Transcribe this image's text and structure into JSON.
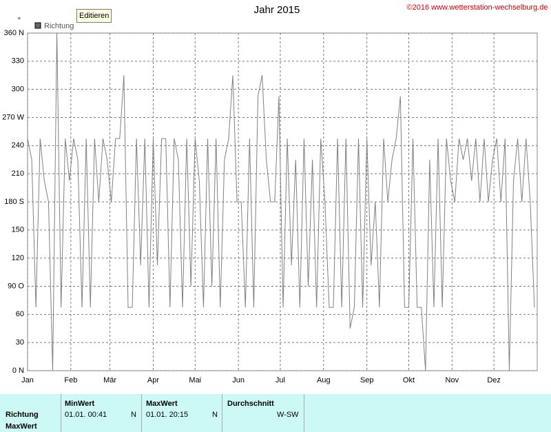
{
  "chart_data": {
    "type": "line",
    "title": "Jahr 2015",
    "y_label": "°",
    "legend": "top-left",
    "grid": true,
    "xlim": [
      0,
      365
    ],
    "ylim": [
      0,
      360
    ],
    "xticks": [
      {
        "value": 0,
        "label": "Jan"
      },
      {
        "value": 31,
        "label": "Feb"
      },
      {
        "value": 59,
        "label": "Mär"
      },
      {
        "value": 90,
        "label": "Apr"
      },
      {
        "value": 120,
        "label": "Mai"
      },
      {
        "value": 151,
        "label": "Jun"
      },
      {
        "value": 181,
        "label": "Jul"
      },
      {
        "value": 212,
        "label": "Aug"
      },
      {
        "value": 243,
        "label": "Sep"
      },
      {
        "value": 273,
        "label": "Okt"
      },
      {
        "value": 304,
        "label": "Nov"
      },
      {
        "value": 334,
        "label": "Dez"
      }
    ],
    "yticks": [
      {
        "value": 360,
        "label": "360 N"
      },
      330,
      300,
      {
        "value": 270,
        "label": "270 W"
      },
      240,
      210,
      {
        "value": 180,
        "label": "180 S"
      },
      150,
      120,
      {
        "value": 90,
        "label": "90  O"
      },
      60,
      30,
      {
        "value": 0,
        "label": "0  N"
      }
    ],
    "x": [
      0,
      3,
      6,
      9,
      12,
      15,
      18,
      21,
      24,
      27,
      30,
      33,
      36,
      39,
      42,
      45,
      48,
      51,
      54,
      57,
      60,
      63,
      66,
      69,
      72,
      75,
      78,
      81,
      84,
      87,
      90,
      93,
      96,
      99,
      102,
      105,
      108,
      111,
      114,
      117,
      120,
      123,
      126,
      129,
      132,
      135,
      138,
      141,
      144,
      147,
      150,
      153,
      156,
      159,
      162,
      165,
      168,
      171,
      174,
      177,
      180,
      183,
      186,
      189,
      192,
      195,
      198,
      201,
      204,
      207,
      210,
      213,
      216,
      219,
      222,
      225,
      228,
      231,
      234,
      237,
      240,
      243,
      246,
      249,
      252,
      255,
      258,
      261,
      264,
      267,
      270,
      273,
      276,
      279,
      282,
      285,
      288,
      291,
      294,
      297,
      300,
      303,
      306,
      309,
      312,
      315,
      318,
      321,
      324,
      327,
      330,
      333,
      336,
      339,
      342,
      345,
      348,
      351,
      354,
      357,
      360,
      363
    ],
    "series": [
      {
        "name": "Richtung",
        "color": "#808080",
        "values": [
          247.5,
          225,
          67.5,
          247.5,
          202.5,
          180,
          0,
          360,
          67.5,
          247.5,
          202.5,
          247.5,
          225,
          67.5,
          247.5,
          67.5,
          247.5,
          180,
          247.5,
          225,
          180,
          247.5,
          247.5,
          315,
          67.5,
          67.5,
          247.5,
          112.5,
          247.5,
          67.5,
          247.5,
          112.5,
          247.5,
          247.5,
          67.5,
          247.5,
          225,
          67.5,
          247.5,
          90,
          247.5,
          202.5,
          67.5,
          247.5,
          90,
          247.5,
          67.5,
          225,
          247.5,
          315,
          180,
          180,
          67.5,
          247.5,
          67.5,
          292.5,
          315,
          225,
          180,
          180,
          292.5,
          67.5,
          247.5,
          112.5,
          225,
          67.5,
          247.5,
          90,
          225,
          67.5,
          247.5,
          180,
          67.5,
          67.5,
          247.5,
          67.5,
          247.5,
          45,
          67.5,
          247.5,
          67.5,
          247.5,
          112.5,
          180,
          67.5,
          247.5,
          180,
          225,
          247.5,
          292.5,
          67.5,
          67.5,
          247.5,
          67.5,
          67.5,
          0,
          225,
          67.5,
          247.5,
          67.5,
          247.5,
          202.5,
          180,
          247.5,
          225,
          247.5,
          202.5,
          247.5,
          180,
          247.5,
          180,
          225,
          247.5,
          180,
          247.5,
          0,
          202.5,
          247.5,
          180,
          247.5,
          180,
          67.5
        ]
      }
    ]
  },
  "copyright": "©2016 www.wetterstation-wechselburg.de",
  "button": "Editieren",
  "table": {
    "row_labels": [
      "Richtung",
      "MaxWert"
    ],
    "columns": [
      {
        "header": "MinWert",
        "date": "01.01.  00:41",
        "dir": "N"
      },
      {
        "header": "MaxWert",
        "date": "01.01.  20:15",
        "dir": "N"
      },
      {
        "header": "Durchschnitt",
        "value": "W-SW"
      }
    ]
  }
}
